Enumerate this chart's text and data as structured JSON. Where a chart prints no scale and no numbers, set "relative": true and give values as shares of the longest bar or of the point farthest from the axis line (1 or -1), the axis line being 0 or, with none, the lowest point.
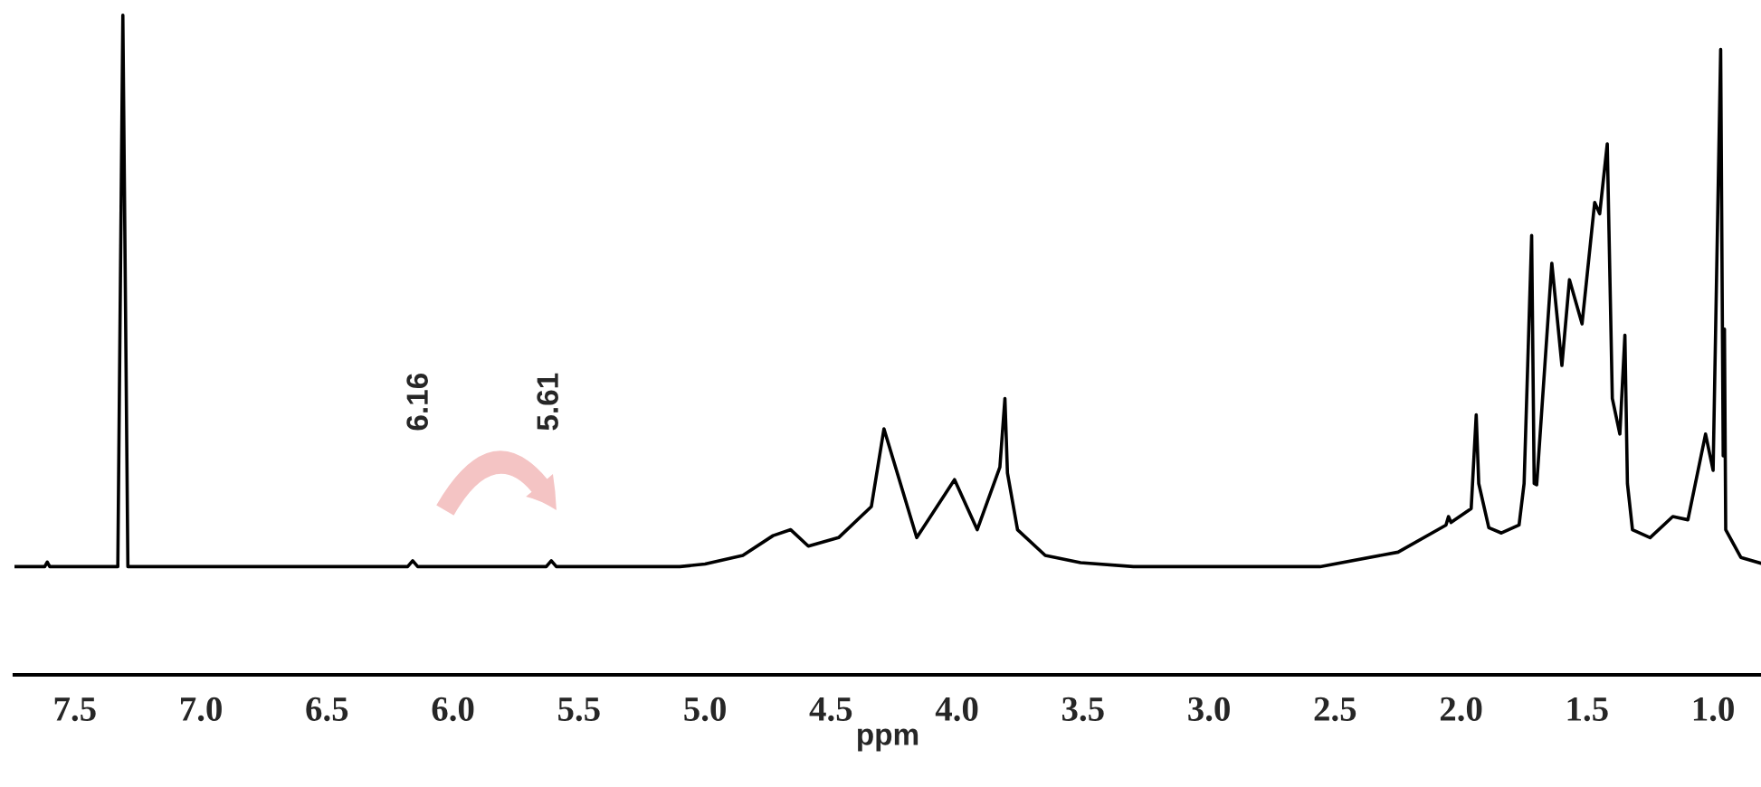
{
  "chart_data": {
    "type": "line",
    "relative": true,
    "xlabel": "ppm",
    "tick_labels": "x",
    "xlim": [
      7.74,
      0.81
    ],
    "xticks": [
      7.5,
      {
        "value": 7,
        "label": "7.0"
      },
      6.5,
      {
        "value": 6,
        "label": "6.0"
      },
      5.5,
      {
        "value": 5,
        "label": "5.0"
      },
      4.5,
      {
        "value": 4,
        "label": "4.0"
      },
      3.5,
      {
        "value": 3,
        "label": "3.0"
      },
      2.5,
      {
        "value": 2,
        "label": "2.0"
      },
      1.5,
      {
        "value": 1,
        "label": "1.0"
      }
    ],
    "annotations": [
      "6.16",
      "5.61"
    ],
    "series": [
      {
        "color": "#000000",
        "x": [
          7.74,
          7.62,
          7.61,
          7.6,
          7.33,
          7.31,
          7.29,
          7.2,
          6.18,
          6.16,
          6.14,
          5.63,
          5.61,
          5.59,
          5.1,
          5.0,
          4.85,
          4.73,
          4.66,
          4.59,
          4.47,
          4.34,
          4.29,
          4.16,
          4.01,
          3.92,
          3.83,
          3.81,
          3.8,
          3.76,
          3.65,
          3.51,
          3.3,
          2.56,
          2.25,
          2.06,
          2.05,
          2.04,
          1.96,
          1.94,
          1.93,
          1.89,
          1.84,
          1.77,
          1.75,
          1.72,
          1.71,
          1.7,
          1.64,
          1.6,
          1.57,
          1.52,
          1.47,
          1.45,
          1.42,
          1.4,
          1.37,
          1.35,
          1.34,
          1.32,
          1.25,
          1.16,
          1.1,
          1.03,
          1.0,
          0.99,
          0.97,
          0.96,
          0.955,
          0.95,
          0.89,
          0.81
        ],
        "values": [
          0.164,
          0.164,
          0.171,
          0.164,
          0.164,
          1.0,
          0.164,
          0.164,
          0.164,
          0.173,
          0.164,
          0.164,
          0.173,
          0.164,
          0.164,
          0.168,
          0.181,
          0.211,
          0.22,
          0.195,
          0.208,
          0.255,
          0.373,
          0.208,
          0.296,
          0.22,
          0.315,
          0.419,
          0.306,
          0.22,
          0.181,
          0.17,
          0.164,
          0.164,
          0.186,
          0.227,
          0.24,
          0.231,
          0.252,
          0.394,
          0.29,
          0.223,
          0.215,
          0.227,
          0.29,
          0.666,
          0.29,
          0.288,
          0.624,
          0.469,
          0.599,
          0.532,
          0.716,
          0.699,
          0.805,
          0.419,
          0.365,
          0.515,
          0.29,
          0.22,
          0.208,
          0.24,
          0.235,
          0.365,
          0.31,
          0.524,
          0.948,
          0.332,
          0.524,
          0.22,
          0.178,
          0.169
        ]
      }
    ]
  }
}
